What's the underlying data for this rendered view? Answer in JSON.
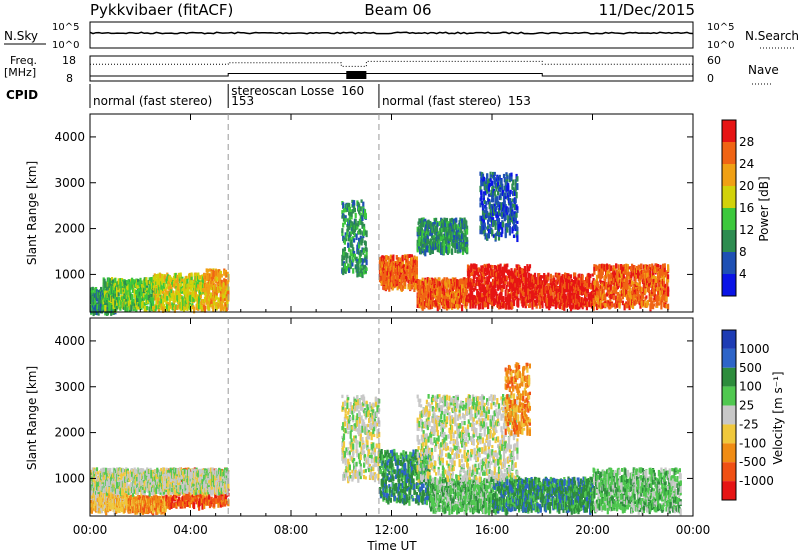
{
  "header": {
    "station": "Pykkvibaer (fitACF)",
    "beam": "Beam 06",
    "date": "11/Dec/2015"
  },
  "sky_panel": {
    "left_label": "N.Sky",
    "left_ticks": [
      "10^5",
      "10^0"
    ],
    "right_ticks": [
      "10^5",
      "10^0"
    ],
    "right_label": "N.Search"
  },
  "freq_panel": {
    "left_label_1": "Freq.",
    "left_label_2": "[MHz]",
    "left_ticks": [
      "18",
      "8"
    ],
    "right_ticks": [
      "60",
      "0"
    ],
    "right_label": "Nave"
  },
  "cpid": {
    "label": "CPID",
    "segments": [
      {
        "text": "normal (fast stereo)",
        "id": "153",
        "start_h": 0.0,
        "end_h": 5.5
      },
      {
        "text": "stereoscan Losse",
        "id": "160",
        "start_h": 5.5,
        "end_h": 11.5
      },
      {
        "text": "normal (fast stereo)",
        "id": "153",
        "start_h": 11.5,
        "end_h": 24.0
      }
    ]
  },
  "x_axis": {
    "label": "Time UT",
    "ticks": [
      "00:00",
      "04:00",
      "08:00",
      "12:00",
      "16:00",
      "20:00",
      "00:00"
    ],
    "range_h": [
      0,
      24
    ]
  },
  "power_panel": {
    "ylabel": "Slant Range [km]",
    "yticks": [
      "4000",
      "3000",
      "2000",
      "1000"
    ],
    "yrange_km": [
      180,
      4500
    ],
    "colorbar_label": "Power [dB]",
    "colorbar_ticks": [
      "28",
      "24",
      "20",
      "16",
      "12",
      "8",
      "4"
    ],
    "colors": [
      "#0a14e6",
      "#1e50b4",
      "#2d8c50",
      "#3cc83c",
      "#d2d20a",
      "#f0a014",
      "#f06414",
      "#e61414"
    ]
  },
  "velocity_panel": {
    "ylabel": "Slant Range [km]",
    "yticks": [
      "4000",
      "3000",
      "2000",
      "1000"
    ],
    "yrange_km": [
      180,
      4500
    ],
    "colorbar_label": "Velocity [m s⁻¹]",
    "colorbar_ticks": [
      "1000",
      "500",
      "100",
      "25",
      "-25",
      "-100",
      "-500",
      "-1000"
    ],
    "colors": [
      "#1e3cb4",
      "#2d64c8",
      "#2d8c3c",
      "#50c850",
      "#c8c8c8",
      "#f0c83c",
      "#f08c14",
      "#f05014",
      "#e61414"
    ]
  },
  "chart_data": {
    "type": "heatmap",
    "x_label": "Time UT",
    "x_range_h": [
      0,
      24
    ],
    "y_label": "Slant Range [km]",
    "y_range_km": [
      180,
      4500
    ],
    "frequency_mhz": {
      "before_5_5h": 10,
      "from_5_5h_to_18h": 11,
      "after_18h": 10
    },
    "nave": {
      "segments": [
        {
          "start_h": 0,
          "end_h": 5.5,
          "value": 40
        },
        {
          "start_h": 5.5,
          "end_h": 10.0,
          "value": 44
        },
        {
          "start_h": 10.0,
          "end_h": 11.0,
          "value": 35
        },
        {
          "start_h": 11.0,
          "end_h": 18.0,
          "value": 47
        },
        {
          "start_h": 18.0,
          "end_h": 24.0,
          "value": 40
        }
      ]
    },
    "power_regions": [
      {
        "t0": 0.0,
        "t1": 1.0,
        "r0": 180,
        "r1": 700,
        "level": 2
      },
      {
        "t0": 0.5,
        "t1": 2.5,
        "r0": 250,
        "r1": 900,
        "level": 3
      },
      {
        "t0": 2.5,
        "t1": 4.5,
        "r0": 250,
        "r1": 1000,
        "level": 4
      },
      {
        "t0": 4.5,
        "t1": 5.5,
        "r0": 250,
        "r1": 1100,
        "level": 5
      },
      {
        "t0": 10.0,
        "t1": 11.0,
        "r0": 1000,
        "r1": 2600,
        "level": 2
      },
      {
        "t0": 11.5,
        "t1": 13.0,
        "r0": 700,
        "r1": 1400,
        "level": 6
      },
      {
        "t0": 13.0,
        "t1": 15.0,
        "r0": 300,
        "r1": 900,
        "level": 6
      },
      {
        "t0": 15.0,
        "t1": 17.5,
        "r0": 300,
        "r1": 1200,
        "level": 7
      },
      {
        "t0": 17.5,
        "t1": 20.0,
        "r0": 300,
        "r1": 1000,
        "level": 7
      },
      {
        "t0": 20.0,
        "t1": 23.0,
        "r0": 300,
        "r1": 1200,
        "level": 6
      },
      {
        "t0": 15.5,
        "t1": 17.0,
        "r0": 1800,
        "r1": 3200,
        "level": 1
      },
      {
        "t0": 13.0,
        "t1": 15.0,
        "r0": 1500,
        "r1": 2200,
        "level": 2
      }
    ],
    "velocity_regions": [
      {
        "t0": 0.0,
        "t1": 1.5,
        "r0": 300,
        "r1": 700,
        "level": 5
      },
      {
        "t0": 1.5,
        "t1": 3.0,
        "r0": 300,
        "r1": 600,
        "level": 6
      },
      {
        "t0": 3.0,
        "t1": 5.5,
        "r0": 400,
        "r1": 1200,
        "level": 7
      },
      {
        "t0": 0.0,
        "t1": 5.5,
        "r0": 700,
        "r1": 1200,
        "level": 4
      },
      {
        "t0": 10.0,
        "t1": 11.5,
        "r0": 1000,
        "r1": 2800,
        "level": 4
      },
      {
        "t0": 11.5,
        "t1": 13.5,
        "r0": 500,
        "r1": 1600,
        "level": 2
      },
      {
        "t0": 13.5,
        "t1": 16.0,
        "r0": 300,
        "r1": 1000,
        "level": 3
      },
      {
        "t0": 16.0,
        "t1": 20.0,
        "r0": 300,
        "r1": 1000,
        "level": 2
      },
      {
        "t0": 20.0,
        "t1": 23.5,
        "r0": 300,
        "r1": 1200,
        "level": 3
      },
      {
        "t0": 13.0,
        "t1": 17.0,
        "r0": 1000,
        "r1": 2800,
        "level": 4
      },
      {
        "t0": 16.5,
        "t1": 17.5,
        "r0": 2000,
        "r1": 3500,
        "level": 6
      }
    ]
  }
}
